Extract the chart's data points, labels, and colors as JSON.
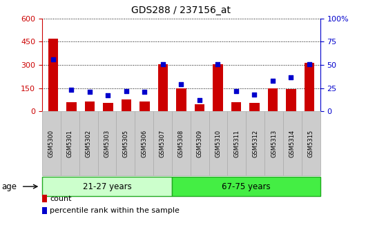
{
  "title": "GDS288 / 237156_at",
  "samples": [
    "GSM5300",
    "GSM5301",
    "GSM5302",
    "GSM5303",
    "GSM5305",
    "GSM5306",
    "GSM5307",
    "GSM5308",
    "GSM5309",
    "GSM5310",
    "GSM5311",
    "GSM5312",
    "GSM5313",
    "GSM5314",
    "GSM5315"
  ],
  "counts": [
    470,
    60,
    65,
    55,
    75,
    65,
    305,
    150,
    45,
    305,
    60,
    55,
    150,
    145,
    315
  ],
  "percentiles": [
    56,
    23,
    21,
    17,
    22,
    21,
    51,
    29,
    12,
    51,
    22,
    18,
    33,
    37,
    51
  ],
  "bar_color": "#cc0000",
  "dot_color": "#0000cc",
  "group1_label": "21-27 years",
  "group2_label": "67-75 years",
  "group1_count": 7,
  "group2_count": 8,
  "group_bg1": "#ccffcc",
  "group_bg2": "#44ee44",
  "group_edge": "#22aa22",
  "age_label": "age",
  "left_ylim": [
    0,
    600
  ],
  "right_ylim": [
    0,
    100
  ],
  "left_yticks": [
    0,
    150,
    300,
    450,
    600
  ],
  "right_yticks": [
    0,
    25,
    50,
    75,
    100
  ],
  "left_ycolor": "#cc0000",
  "right_ycolor": "#0000cc",
  "legend_count": "count",
  "legend_percentile": "percentile rank within the sample",
  "xtick_bg": "#cccccc",
  "xtick_edge": "#aaaaaa",
  "grid_color": "black",
  "grid_style": "dotted"
}
